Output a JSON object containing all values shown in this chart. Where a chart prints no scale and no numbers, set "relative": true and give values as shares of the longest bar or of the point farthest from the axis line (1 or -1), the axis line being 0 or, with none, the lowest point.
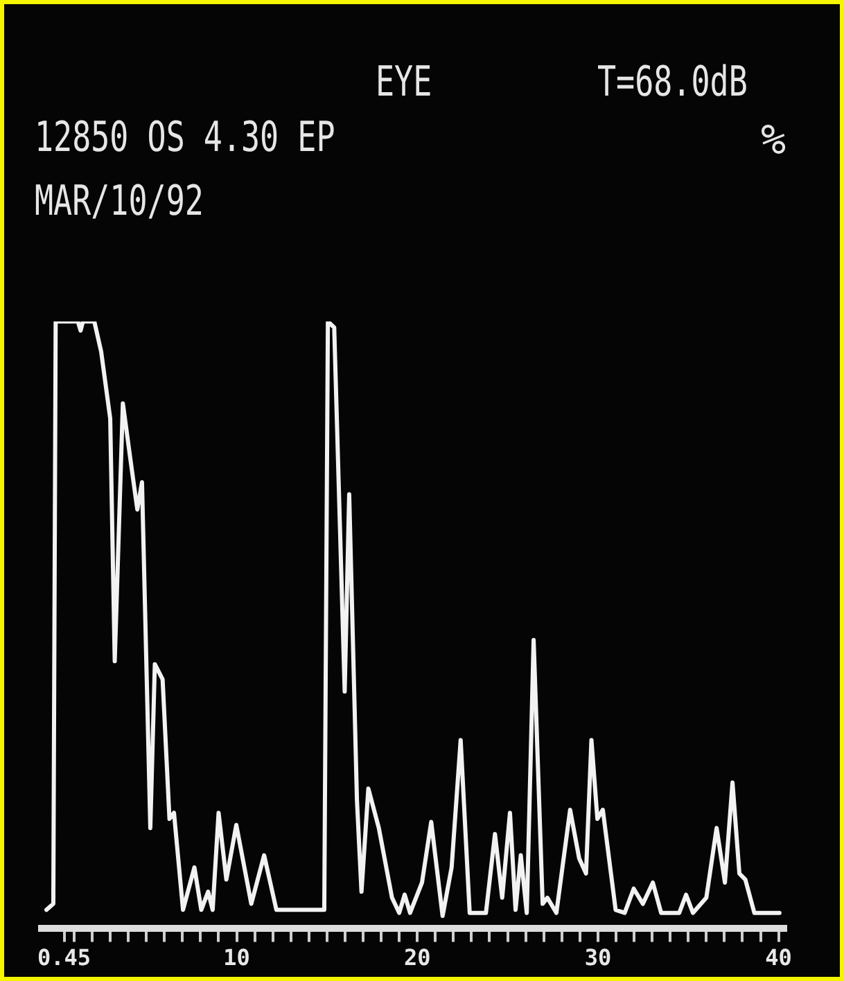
{
  "chart_data": {
    "type": "line",
    "relative": true,
    "marker": "none",
    "line_style": "solid",
    "annotations": [
      "EYE",
      "T=68.0dB",
      "12850 OS 4.30 EP",
      "MAR/10/92",
      "%"
    ],
    "xlim": [
      -0.8,
      40.4
    ],
    "xticks": [
      0.45,
      {
        "value": 1,
        "label": null
      },
      {
        "value": 2,
        "label": null
      },
      {
        "value": 3,
        "label": null
      },
      {
        "value": 4,
        "label": null
      },
      {
        "value": 5,
        "label": null
      },
      {
        "value": 6,
        "label": null
      },
      {
        "value": 7,
        "label": null
      },
      {
        "value": 8,
        "label": null
      },
      {
        "value": 9,
        "label": null
      },
      10,
      {
        "value": 11,
        "label": null
      },
      {
        "value": 12,
        "label": null
      },
      {
        "value": 13,
        "label": null
      },
      {
        "value": 14,
        "label": null
      },
      {
        "value": 15,
        "label": null
      },
      {
        "value": 16,
        "label": null
      },
      {
        "value": 17,
        "label": null
      },
      {
        "value": 18,
        "label": null
      },
      {
        "value": 19,
        "label": null
      },
      20,
      {
        "value": 21,
        "label": null
      },
      {
        "value": 22,
        "label": null
      },
      {
        "value": 23,
        "label": null
      },
      {
        "value": 24,
        "label": null
      },
      {
        "value": 25,
        "label": null
      },
      {
        "value": 26,
        "label": null
      },
      {
        "value": 27,
        "label": null
      },
      {
        "value": 28,
        "label": null
      },
      {
        "value": 29,
        "label": null
      },
      30,
      {
        "value": 31,
        "label": null
      },
      {
        "value": 32,
        "label": null
      },
      {
        "value": 33,
        "label": null
      },
      {
        "value": 34,
        "label": null
      },
      {
        "value": 35,
        "label": null
      },
      {
        "value": 36,
        "label": null
      },
      {
        "value": 37,
        "label": null
      },
      {
        "value": 38,
        "label": null
      },
      {
        "value": 39,
        "label": null
      },
      40
    ],
    "series": [
      {
        "color": "#f2f2f2",
        "x": [
          -0.53,
          -0.15,
          -0.02,
          1.21,
          1.36,
          1.49,
          2.12,
          2.5,
          3.0,
          3.25,
          3.7,
          4.13,
          4.5,
          4.76,
          5.22,
          5.47,
          5.9,
          6.28,
          6.53,
          7.03,
          7.66,
          8.04,
          8.42,
          8.67,
          9.0,
          9.43,
          9.98,
          10.81,
          11.52,
          12.2,
          14.85,
          15.05,
          15.4,
          15.98,
          16.23,
          16.66,
          16.91,
          17.29,
          17.87,
          18.6,
          19.0,
          19.3,
          19.6,
          20.26,
          20.77,
          21.4,
          21.9,
          22.4,
          22.9,
          23.8,
          24.3,
          24.7,
          25.13,
          25.44,
          25.73,
          26.06,
          26.44,
          26.94,
          27.2,
          27.7,
          28.46,
          28.96,
          29.34,
          29.64,
          29.97,
          30.27,
          30.98,
          31.48,
          31.98,
          32.49,
          33.04,
          33.5,
          34.5,
          34.88,
          35.26,
          36.0,
          36.57,
          37.03,
          37.45,
          37.83,
          38.16,
          38.66,
          40.05
        ],
        "values": [
          0.03,
          0.04,
          1.0,
          1.0,
          0.985,
          1.0,
          1.0,
          0.95,
          0.84,
          0.44,
          0.865,
          0.77,
          0.69,
          0.735,
          0.165,
          0.435,
          0.41,
          0.18,
          0.19,
          0.03,
          0.1,
          0.03,
          0.06,
          0.03,
          0.19,
          0.08,
          0.17,
          0.04,
          0.12,
          0.03,
          0.03,
          1.0,
          0.99,
          0.39,
          0.715,
          0.21,
          0.06,
          0.23,
          0.165,
          0.05,
          0.025,
          0.055,
          0.025,
          0.075,
          0.175,
          0.02,
          0.1,
          0.31,
          0.025,
          0.025,
          0.155,
          0.05,
          0.19,
          0.03,
          0.12,
          0.025,
          0.475,
          0.04,
          0.05,
          0.025,
          0.195,
          0.115,
          0.09,
          0.31,
          0.18,
          0.195,
          0.03,
          0.025,
          0.065,
          0.04,
          0.075,
          0.025,
          0.025,
          0.055,
          0.025,
          0.05,
          0.165,
          0.075,
          0.24,
          0.09,
          0.08,
          0.025,
          0.025
        ]
      }
    ]
  }
}
